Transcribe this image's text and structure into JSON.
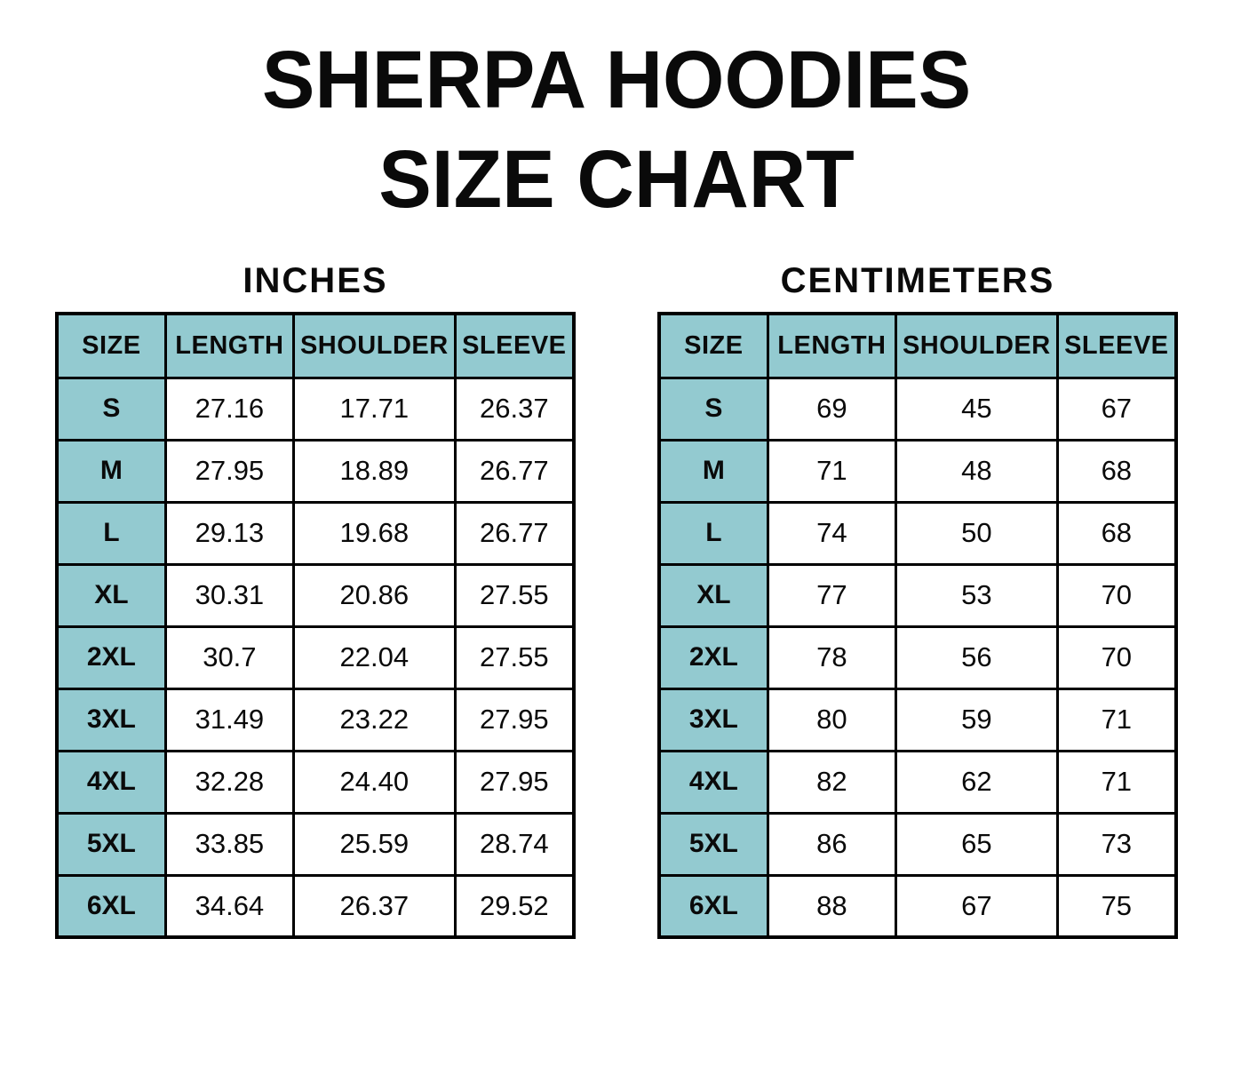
{
  "title": {
    "line1": "SHERPA HOODIES",
    "line2": "SIZE CHART"
  },
  "tables": [
    {
      "unit_label": "INCHES",
      "headers": [
        "SIZE",
        "LENGTH",
        "SHOULDER",
        "SLEEVE"
      ],
      "rows": [
        {
          "size": "S",
          "values": [
            "27.16",
            "17.71",
            "26.37"
          ]
        },
        {
          "size": "M",
          "values": [
            "27.95",
            "18.89",
            "26.77"
          ]
        },
        {
          "size": "L",
          "values": [
            "29.13",
            "19.68",
            "26.77"
          ]
        },
        {
          "size": "XL",
          "values": [
            "30.31",
            "20.86",
            "27.55"
          ]
        },
        {
          "size": "2XL",
          "values": [
            "30.7",
            "22.04",
            "27.55"
          ]
        },
        {
          "size": "3XL",
          "values": [
            "31.49",
            "23.22",
            "27.95"
          ]
        },
        {
          "size": "4XL",
          "values": [
            "32.28",
            "24.40",
            "27.95"
          ]
        },
        {
          "size": "5XL",
          "values": [
            "33.85",
            "25.59",
            "28.74"
          ]
        },
        {
          "size": "6XL",
          "values": [
            "34.64",
            "26.37",
            "29.52"
          ]
        }
      ]
    },
    {
      "unit_label": "CENTIMETERS",
      "headers": [
        "SIZE",
        "LENGTH",
        "SHOULDER",
        "SLEEVE"
      ],
      "rows": [
        {
          "size": "S",
          "values": [
            "69",
            "45",
            "67"
          ]
        },
        {
          "size": "M",
          "values": [
            "71",
            "48",
            "68"
          ]
        },
        {
          "size": "L",
          "values": [
            "74",
            "50",
            "68"
          ]
        },
        {
          "size": "XL",
          "values": [
            "77",
            "53",
            "70"
          ]
        },
        {
          "size": "2XL",
          "values": [
            "78",
            "56",
            "70"
          ]
        },
        {
          "size": "3XL",
          "values": [
            "80",
            "59",
            "71"
          ]
        },
        {
          "size": "4XL",
          "values": [
            "82",
            "62",
            "71"
          ]
        },
        {
          "size": "5XL",
          "values": [
            "86",
            "65",
            "73"
          ]
        },
        {
          "size": "6XL",
          "values": [
            "88",
            "67",
            "75"
          ]
        }
      ]
    }
  ],
  "colors": {
    "header_bg": "#93cad0",
    "border": "#000000",
    "text": "#0a0a0a",
    "background": "#ffffff"
  },
  "chart_data": [
    {
      "type": "table",
      "title": "SHERPA HOODIES SIZE CHART - INCHES",
      "columns": [
        "SIZE",
        "LENGTH",
        "SHOULDER",
        "SLEEVE"
      ],
      "rows": [
        [
          "S",
          27.16,
          17.71,
          26.37
        ],
        [
          "M",
          27.95,
          18.89,
          26.77
        ],
        [
          "L",
          29.13,
          19.68,
          26.77
        ],
        [
          "XL",
          30.31,
          20.86,
          27.55
        ],
        [
          "2XL",
          30.7,
          22.04,
          27.55
        ],
        [
          "3XL",
          31.49,
          23.22,
          27.95
        ],
        [
          "4XL",
          32.28,
          24.4,
          27.95
        ],
        [
          "5XL",
          33.85,
          25.59,
          28.74
        ],
        [
          "6XL",
          34.64,
          26.37,
          29.52
        ]
      ]
    },
    {
      "type": "table",
      "title": "SHERPA HOODIES SIZE CHART - CENTIMETERS",
      "columns": [
        "SIZE",
        "LENGTH",
        "SHOULDER",
        "SLEEVE"
      ],
      "rows": [
        [
          "S",
          69,
          45,
          67
        ],
        [
          "M",
          71,
          48,
          68
        ],
        [
          "L",
          74,
          50,
          68
        ],
        [
          "XL",
          77,
          53,
          70
        ],
        [
          "2XL",
          78,
          56,
          70
        ],
        [
          "3XL",
          80,
          59,
          71
        ],
        [
          "4XL",
          82,
          62,
          71
        ],
        [
          "5XL",
          86,
          65,
          73
        ],
        [
          "6XL",
          88,
          67,
          75
        ]
      ]
    }
  ]
}
